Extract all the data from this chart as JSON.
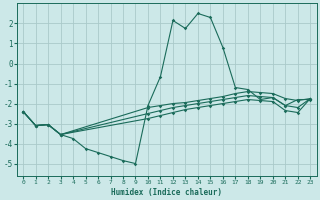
{
  "xlabel": "Humidex (Indice chaleur)",
  "background_color": "#cce8e8",
  "grid_color": "#aacaca",
  "line_color": "#1a6b5a",
  "xlim": [
    -0.5,
    23.5
  ],
  "ylim": [
    -5.6,
    3.0
  ],
  "xticks": [
    0,
    1,
    2,
    3,
    4,
    5,
    6,
    7,
    8,
    9,
    10,
    11,
    12,
    13,
    14,
    15,
    16,
    17,
    18,
    19,
    20,
    21,
    22,
    23
  ],
  "yticks": [
    -5,
    -4,
    -3,
    -2,
    -1,
    0,
    1,
    2
  ],
  "line1_x": [
    0,
    1,
    2,
    3,
    4,
    5,
    6,
    7,
    8,
    9,
    10,
    11,
    12,
    13,
    14,
    15,
    16,
    17,
    18,
    19,
    20,
    21,
    22,
    23
  ],
  "line1_y": [
    -2.4,
    -3.1,
    -3.05,
    -3.55,
    -3.75,
    -4.25,
    -4.45,
    -4.65,
    -4.85,
    -5.0,
    -2.1,
    -0.65,
    2.15,
    1.75,
    2.5,
    2.3,
    0.8,
    -1.2,
    -1.3,
    -1.8,
    -1.7,
    -2.1,
    -1.8,
    -1.8
  ],
  "line2_x": [
    0,
    1,
    2,
    3,
    10,
    11,
    12,
    13,
    14,
    15,
    16,
    17,
    18,
    19,
    20,
    21,
    22,
    23
  ],
  "line2_y": [
    -2.4,
    -3.1,
    -3.05,
    -3.55,
    -2.2,
    -2.1,
    -2.0,
    -1.95,
    -1.85,
    -1.75,
    -1.65,
    -1.5,
    -1.4,
    -1.45,
    -1.5,
    -1.75,
    -1.85,
    -1.75
  ],
  "line3_x": [
    0,
    1,
    2,
    3,
    10,
    11,
    12,
    13,
    14,
    15,
    16,
    17,
    18,
    19,
    20,
    21,
    22,
    23
  ],
  "line3_y": [
    -2.4,
    -3.1,
    -3.05,
    -3.55,
    -2.5,
    -2.35,
    -2.2,
    -2.1,
    -2.0,
    -1.9,
    -1.8,
    -1.7,
    -1.6,
    -1.65,
    -1.7,
    -2.1,
    -2.2,
    -1.75
  ],
  "line4_x": [
    0,
    1,
    2,
    3,
    10,
    11,
    12,
    13,
    14,
    15,
    16,
    17,
    18,
    19,
    20,
    21,
    22,
    23
  ],
  "line4_y": [
    -2.4,
    -3.1,
    -3.05,
    -3.55,
    -2.75,
    -2.6,
    -2.45,
    -2.3,
    -2.2,
    -2.1,
    -2.0,
    -1.9,
    -1.8,
    -1.85,
    -1.9,
    -2.35,
    -2.45,
    -1.75
  ]
}
